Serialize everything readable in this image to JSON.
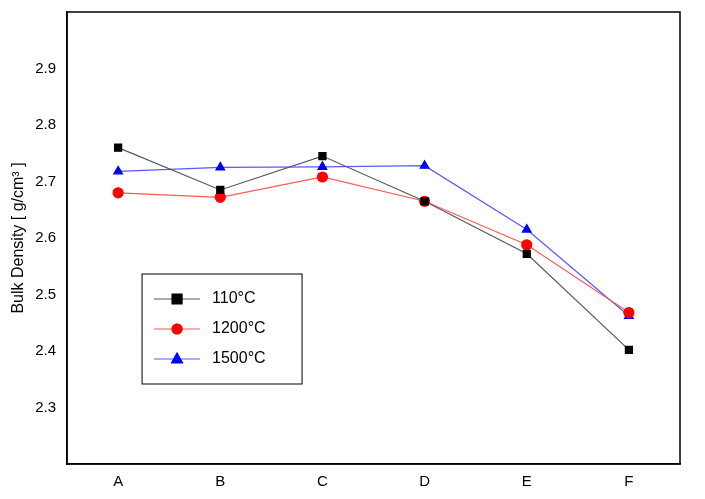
{
  "chart_data": {
    "type": "line",
    "y_label": "Bulk Density [ g/cm³ ]",
    "categories": [
      "A",
      "B",
      "C",
      "D",
      "E",
      "F"
    ],
    "series": [
      {
        "name": "110°C",
        "color": "#000000",
        "marker": "square",
        "values": [
          2.76,
          2.685,
          2.745,
          2.665,
          2.572,
          2.402
        ]
      },
      {
        "name": "1200°C",
        "color": "#ff0000",
        "marker": "circle",
        "values": [
          2.68,
          2.672,
          2.708,
          2.665,
          2.588,
          2.468
        ]
      },
      {
        "name": "1500°C",
        "color": "#0000ff",
        "marker": "triangle",
        "values": [
          2.718,
          2.725,
          2.726,
          2.728,
          2.615,
          2.462
        ]
      }
    ],
    "ylim": [
      2.2,
      3.0
    ],
    "yticks": [
      2.3,
      2.4,
      2.5,
      2.6,
      2.7,
      2.8,
      2.9
    ],
    "grid": false,
    "legend": "lower left"
  }
}
